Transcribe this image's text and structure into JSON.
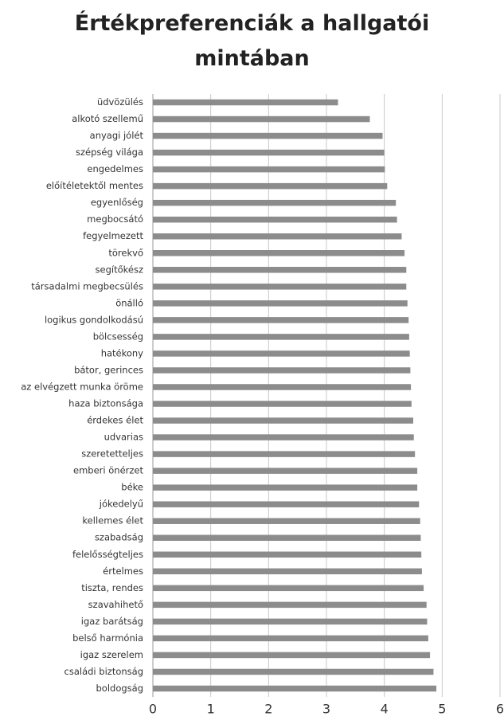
{
  "chart_data": {
    "type": "bar",
    "orientation": "horizontal",
    "title_lines": [
      "Értékpreferenciák a hallgatói",
      "mintában"
    ],
    "categories": [
      "üdvözülés",
      "alkotó szellemű",
      "anyagi jólét",
      "szépség világa",
      "engedelmes",
      "előítéletektől mentes",
      "egyenlőség",
      "megbocsátó",
      "fegyelmezett",
      "törekvő",
      "segítőkész",
      "társadalmi megbecsülés",
      "önálló",
      "logikus gondolkodású",
      "bölcsesség",
      "hatékony",
      "bátor, gerinces",
      "az elvégzett munka öröme",
      "haza biztonsága",
      "érdekes élet",
      "udvarias",
      "szeretetteljes",
      "emberi önérzet",
      "béke",
      "jókedelyű",
      "kellemes élet",
      "szabadság",
      "felelősségteljes",
      "értelmes",
      "tiszta, rendes",
      "szavahihető",
      "igaz barátság",
      "belső harmónia",
      "igaz szerelem",
      "családi biztonság",
      "boldogság"
    ],
    "values": [
      3.2,
      3.75,
      3.97,
      4.0,
      4.01,
      4.05,
      4.2,
      4.22,
      4.3,
      4.35,
      4.38,
      4.38,
      4.4,
      4.42,
      4.43,
      4.44,
      4.45,
      4.46,
      4.47,
      4.5,
      4.51,
      4.53,
      4.57,
      4.57,
      4.6,
      4.62,
      4.63,
      4.64,
      4.65,
      4.68,
      4.73,
      4.74,
      4.76,
      4.79,
      4.85,
      4.9
    ],
    "xlim": [
      0,
      6
    ],
    "xticks": [
      "0",
      "1",
      "2",
      "3",
      "4",
      "5",
      "6"
    ],
    "grid": true,
    "bar_color": "#8c8c8c"
  }
}
